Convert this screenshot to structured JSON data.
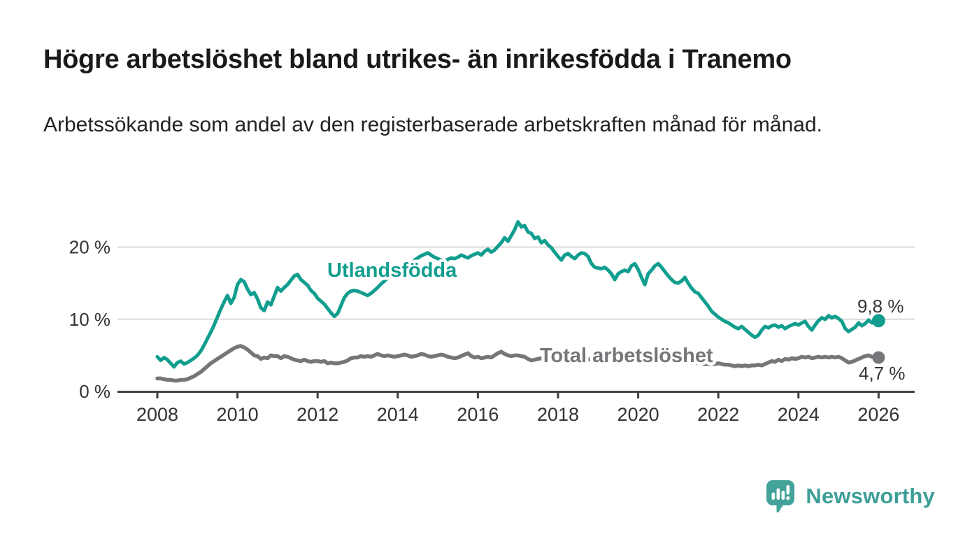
{
  "title": "Högre arbetslöshet bland utrikes- än inrikesfödda i Tranemo",
  "subtitle": "Arbetssökande som andel av den registerbaserade arbetskraften månad för månad.",
  "logo": {
    "text": "Newsworthy",
    "icon": "speech-bubble-bar-chart-icon",
    "color": "#3d9e97"
  },
  "colors": {
    "background": "#ffffff",
    "title_text": "#1a1a1a",
    "subtitle_text": "#222222",
    "axis_line": "#3f3f3f",
    "grid_line": "#dbdbdb",
    "axis_text": "#333333",
    "value_label_text": "#333333",
    "utlandsfodda": "#119e8f",
    "total_arbetsloshet": "#76767a"
  },
  "chart_data": {
    "type": "line",
    "title": "Högre arbetslöshet bland utrikes- än inrikesfödda i Tranemo",
    "subtitle": "Arbetssökande som andel av den registerbaserade arbetskraften månad för månad.",
    "unit": "%",
    "frequency": "monthly",
    "start": "2008-01",
    "end": "2026-01",
    "grid": "horizontal",
    "legend": "inline-series-labels",
    "x_axis": {
      "range": [
        2007,
        2026.9
      ],
      "ticks": [
        {
          "value": 2008,
          "label": "2008"
        },
        {
          "value": 2010,
          "label": "2010"
        },
        {
          "value": 2012,
          "label": "2012"
        },
        {
          "value": 2014,
          "label": "2014"
        },
        {
          "value": 2016,
          "label": "2016"
        },
        {
          "value": 2018,
          "label": "2018"
        },
        {
          "value": 2020,
          "label": "2020"
        },
        {
          "value": 2022,
          "label": "2022"
        },
        {
          "value": 2024,
          "label": "2024"
        },
        {
          "value": 2026,
          "label": "2026"
        }
      ]
    },
    "y_axis": {
      "range": [
        0,
        24
      ],
      "ticks": [
        {
          "value": 0,
          "label": "0 %"
        },
        {
          "value": 10,
          "label": "10 %"
        },
        {
          "value": 20,
          "label": "20 %"
        }
      ]
    },
    "series": [
      {
        "name": "Utlandsfödda",
        "color": "#119e8f",
        "last_value": 9.8,
        "end_value_label": "9,8 %",
        "start_year": 2008,
        "points_per_year": 12,
        "values": [
          4.8,
          4.3,
          4.7,
          4.4,
          3.9,
          3.4,
          4.0,
          4.2,
          3.8,
          4.0,
          4.3,
          4.6,
          5.0,
          5.6,
          6.4,
          7.3,
          8.2,
          9.2,
          10.3,
          11.4,
          12.4,
          13.3,
          12.2,
          13.0,
          14.8,
          15.5,
          15.2,
          14.2,
          13.4,
          13.7,
          12.8,
          11.6,
          11.2,
          12.4,
          12.0,
          13.2,
          14.4,
          13.9,
          14.4,
          14.8,
          15.4,
          16.0,
          16.2,
          15.5,
          15.1,
          14.7,
          14.0,
          13.6,
          12.9,
          12.5,
          12.1,
          11.5,
          10.9,
          10.4,
          10.8,
          11.9,
          13.0,
          13.6,
          13.9,
          14.0,
          13.9,
          13.7,
          13.5,
          13.3,
          13.6,
          14.0,
          14.4,
          14.9,
          15.3,
          15.7,
          15.9,
          16.1,
          16.3,
          16.6,
          17.0,
          17.4,
          17.8,
          18.2,
          18.5,
          18.8,
          19.0,
          19.2,
          18.9,
          18.6,
          18.4,
          18.2,
          18.0,
          18.3,
          18.5,
          18.4,
          18.6,
          18.9,
          18.7,
          18.5,
          18.8,
          19.0,
          19.2,
          18.9,
          19.4,
          19.7,
          19.3,
          19.6,
          20.1,
          20.6,
          21.3,
          20.8,
          21.6,
          22.4,
          23.5,
          22.8,
          23.0,
          22.1,
          21.9,
          21.2,
          21.4,
          20.6,
          20.9,
          20.3,
          19.9,
          19.3,
          18.7,
          18.2,
          18.9,
          19.1,
          18.7,
          18.4,
          18.9,
          19.2,
          19.1,
          18.7,
          17.7,
          17.2,
          17.1,
          17.0,
          17.2,
          16.8,
          16.3,
          15.5,
          16.3,
          16.6,
          16.8,
          16.6,
          17.4,
          17.7,
          16.9,
          15.8,
          14.8,
          16.3,
          16.8,
          17.4,
          17.7,
          17.2,
          16.6,
          16.0,
          15.5,
          15.1,
          15.0,
          15.3,
          15.8,
          15.0,
          14.3,
          13.8,
          13.6,
          13.0,
          12.4,
          11.8,
          11.1,
          10.7,
          10.3,
          10.0,
          9.7,
          9.5,
          9.2,
          8.9,
          8.7,
          9.0,
          8.6,
          8.2,
          7.8,
          7.5,
          7.8,
          8.5,
          9.0,
          8.8,
          9.1,
          9.2,
          8.9,
          9.1,
          8.7,
          9.0,
          9.2,
          9.4,
          9.2,
          9.5,
          9.7,
          9.0,
          8.5,
          9.2,
          9.8,
          10.2,
          10.0,
          10.5,
          10.2,
          10.4,
          10.1,
          9.7,
          8.7,
          8.3,
          8.6,
          8.9,
          9.5,
          9.1,
          9.4,
          9.9,
          9.5,
          9.6,
          9.8
        ]
      },
      {
        "name": "Total arbetslöshet",
        "color": "#76767a",
        "last_value": 4.7,
        "end_value_label": "4,7 %",
        "start_year": 2008,
        "points_per_year": 12,
        "values": [
          1.8,
          1.8,
          1.7,
          1.6,
          1.6,
          1.5,
          1.5,
          1.6,
          1.6,
          1.7,
          1.9,
          2.1,
          2.4,
          2.7,
          3.1,
          3.5,
          3.9,
          4.2,
          4.5,
          4.8,
          5.1,
          5.4,
          5.7,
          6.0,
          6.2,
          6.3,
          6.1,
          5.8,
          5.4,
          5.0,
          4.9,
          4.5,
          4.7,
          4.6,
          5.0,
          4.9,
          4.9,
          4.6,
          4.9,
          4.8,
          4.6,
          4.4,
          4.3,
          4.2,
          4.4,
          4.2,
          4.1,
          4.2,
          4.2,
          4.1,
          4.2,
          3.9,
          4.0,
          3.9,
          3.9,
          4.0,
          4.1,
          4.3,
          4.6,
          4.7,
          4.7,
          4.9,
          4.8,
          4.9,
          4.8,
          5.0,
          5.2,
          5.0,
          4.9,
          5.0,
          4.9,
          4.8,
          4.9,
          5.0,
          5.1,
          5.0,
          4.8,
          4.9,
          5.0,
          5.2,
          5.1,
          4.9,
          4.8,
          4.9,
          5.0,
          5.1,
          5.0,
          4.8,
          4.7,
          4.6,
          4.7,
          4.9,
          5.1,
          5.3,
          4.9,
          4.7,
          4.8,
          4.6,
          4.7,
          4.8,
          4.7,
          5.0,
          5.3,
          5.5,
          5.2,
          5.0,
          4.9,
          5.0,
          5.0,
          4.9,
          4.8,
          4.5,
          4.3,
          4.4,
          4.5,
          4.6,
          4.5,
          4.4,
          4.5,
          4.4,
          4.5,
          4.6,
          4.5,
          4.4,
          4.3,
          4.4,
          4.5,
          4.4,
          4.3,
          4.4,
          4.5,
          4.4,
          4.3,
          4.4,
          4.3,
          4.2,
          4.3,
          4.4,
          4.5,
          4.4,
          4.5,
          4.6,
          4.7,
          4.8,
          4.9,
          5.0,
          5.3,
          5.5,
          5.4,
          5.2,
          5.1,
          5.0,
          4.9,
          4.8,
          4.7,
          4.6,
          4.5,
          4.4,
          4.3,
          4.2,
          4.1,
          4.0,
          3.9,
          3.9,
          3.8,
          3.8,
          3.9,
          3.8,
          3.9,
          3.8,
          3.7,
          3.7,
          3.6,
          3.5,
          3.6,
          3.5,
          3.6,
          3.5,
          3.6,
          3.6,
          3.7,
          3.6,
          3.8,
          4.0,
          4.2,
          4.1,
          4.4,
          4.2,
          4.5,
          4.4,
          4.6,
          4.5,
          4.6,
          4.8,
          4.7,
          4.8,
          4.6,
          4.7,
          4.8,
          4.7,
          4.8,
          4.7,
          4.8,
          4.7,
          4.8,
          4.6,
          4.3,
          4.0,
          4.1,
          4.3,
          4.5,
          4.7,
          4.9,
          5.0,
          4.8,
          4.7,
          4.7
        ]
      }
    ]
  }
}
